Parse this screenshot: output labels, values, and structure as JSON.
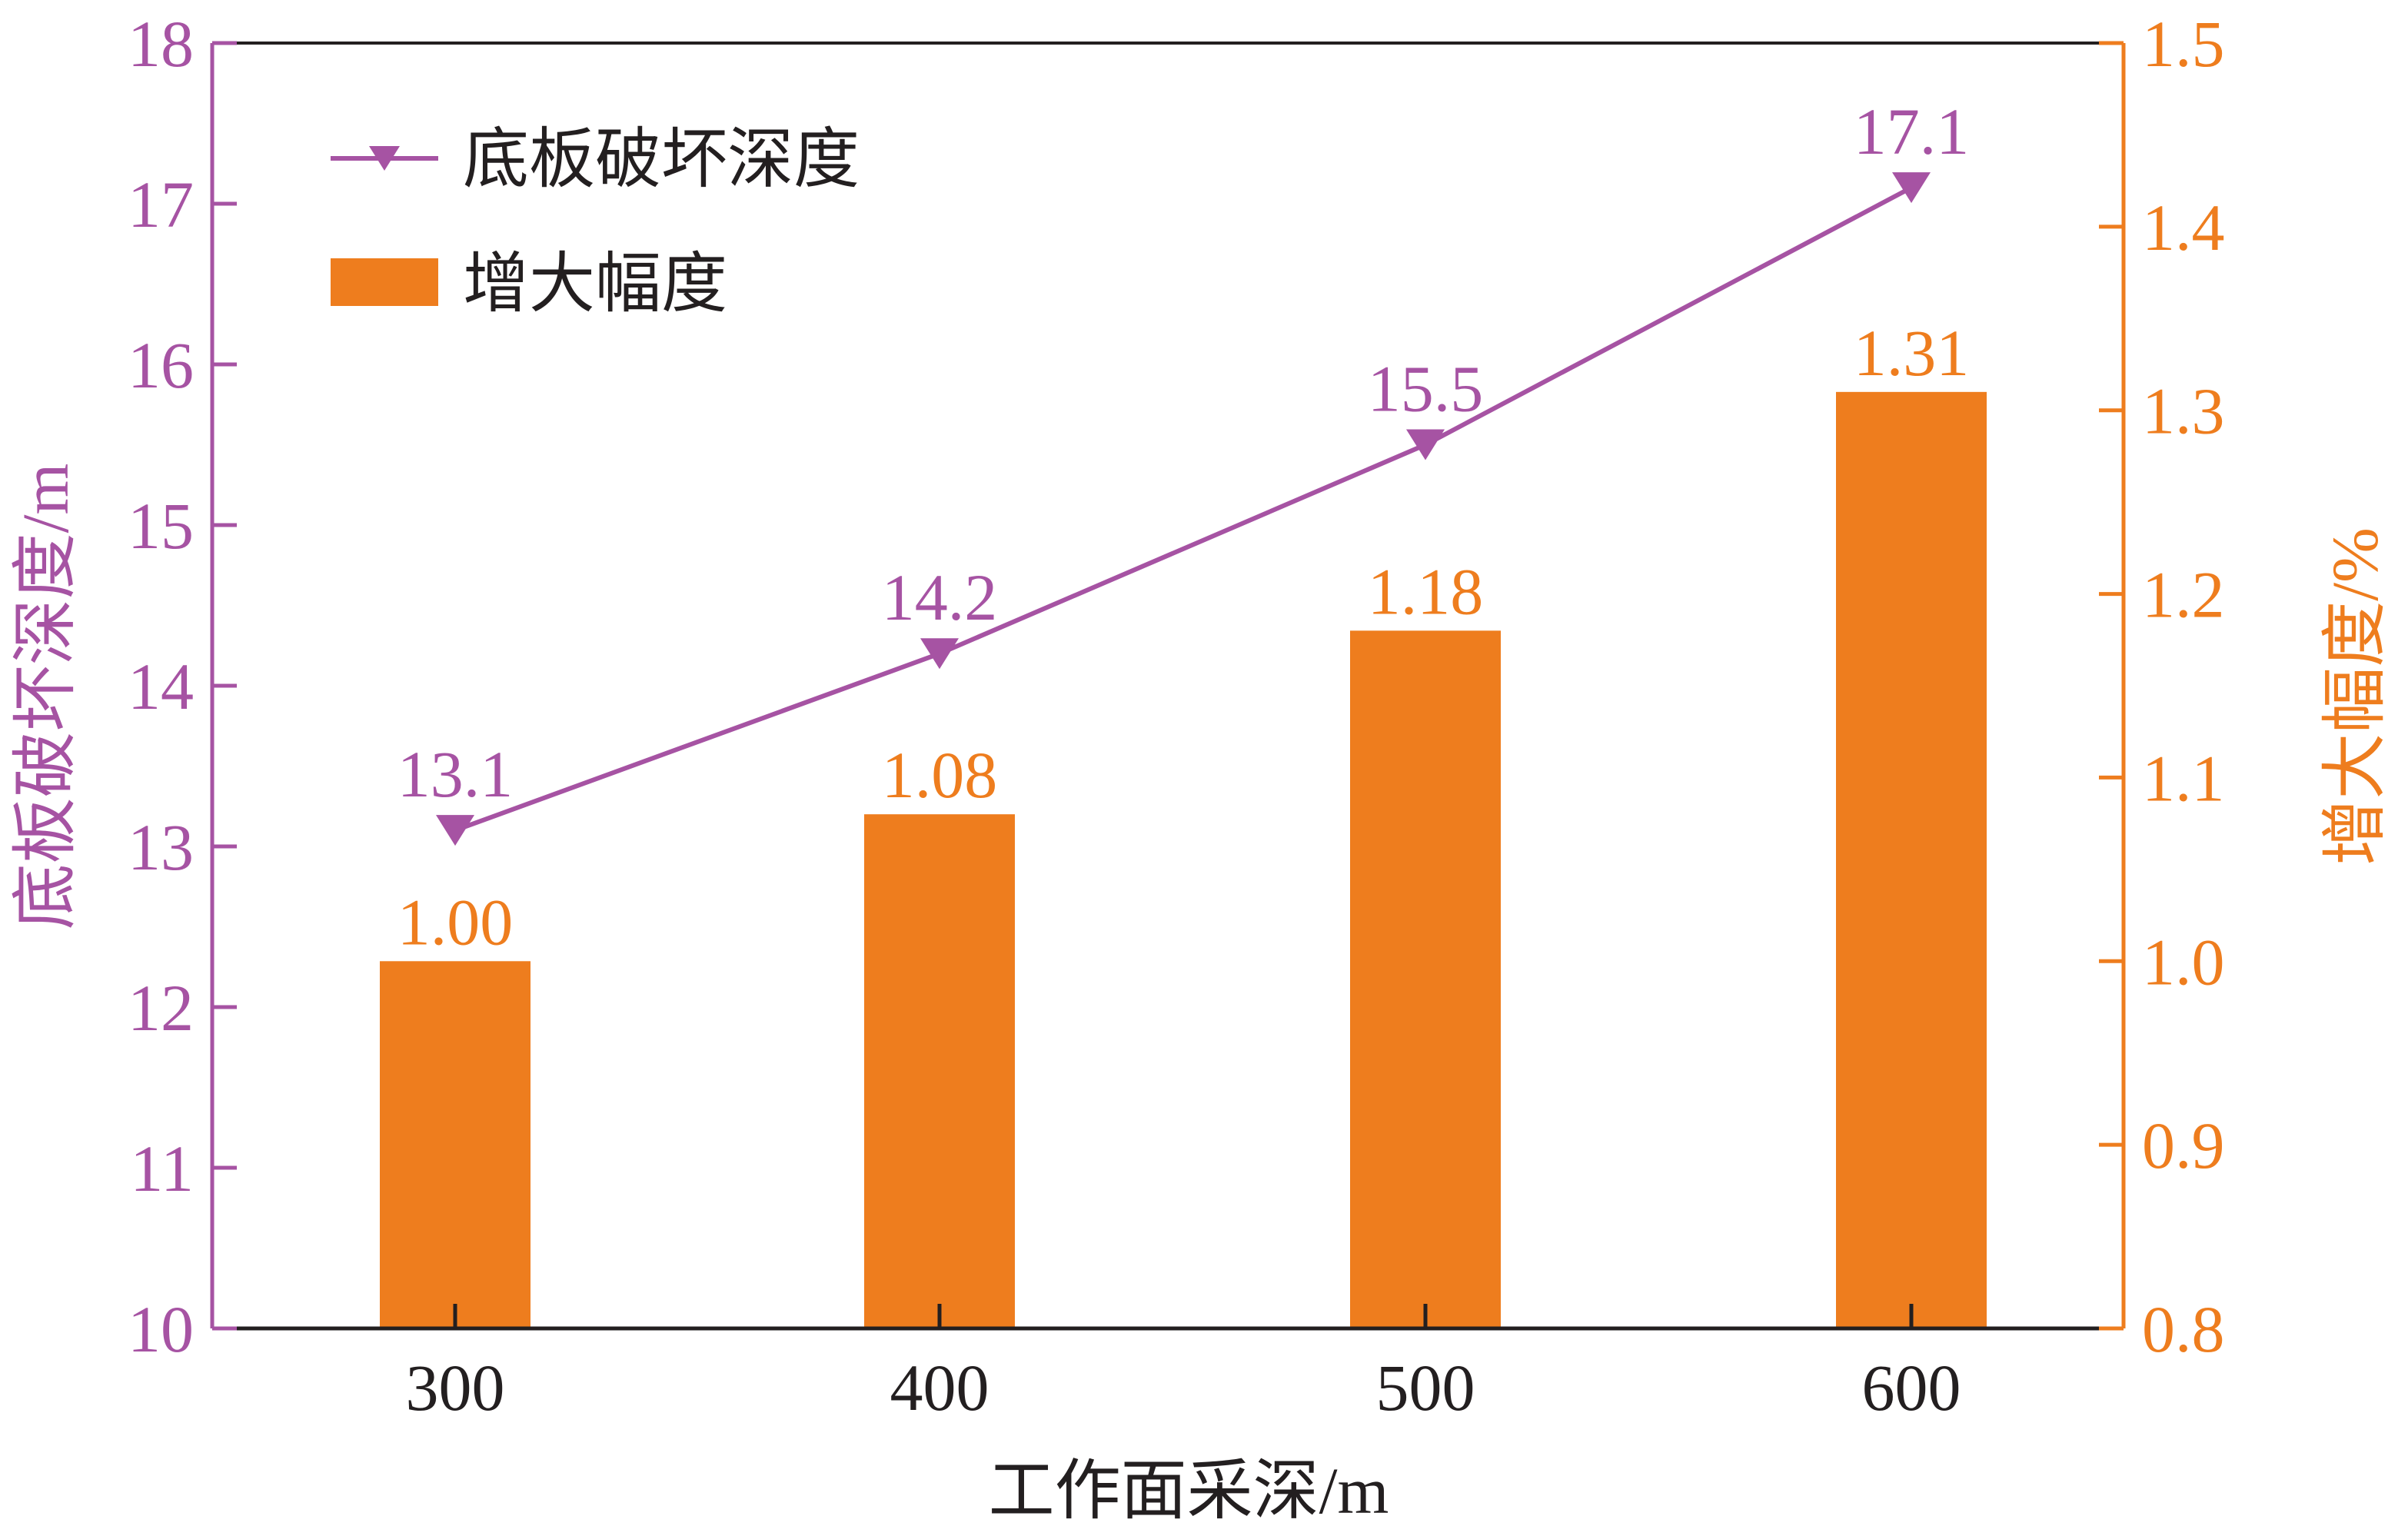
{
  "chart_data": {
    "type": "bar",
    "xlabel": "工作面采深/m",
    "categories": [
      "300",
      "400",
      "500",
      "600"
    ],
    "ylabel_left": "底板破坏深度/m",
    "ylabel_right": "增大幅度/%",
    "ylim_left": [
      10,
      18
    ],
    "ylim_right": [
      0.8,
      1.5
    ],
    "yticks_left": [
      "10",
      "11",
      "12",
      "13",
      "14",
      "15",
      "16",
      "17",
      "18"
    ],
    "yticks_right": [
      "0.8",
      "0.9",
      "1.0",
      "1.1",
      "1.2",
      "1.3",
      "1.4",
      "1.5"
    ],
    "legend_position": "top-left",
    "grid": false,
    "series": [
      {
        "name": "底板破坏深度",
        "type": "line",
        "axis": "left",
        "marker": "triangle-down",
        "color": "#a653a3",
        "values": [
          13.1,
          14.2,
          15.5,
          17.1
        ],
        "labels": [
          "13.1",
          "14.2",
          "15.5",
          "17.1"
        ]
      },
      {
        "name": "增大幅度",
        "type": "bar",
        "axis": "right",
        "color": "#ee7d1e",
        "values": [
          1.0,
          1.08,
          1.18,
          1.31
        ],
        "labels": [
          "1.00",
          "1.08",
          "1.18",
          "1.31"
        ]
      }
    ]
  }
}
